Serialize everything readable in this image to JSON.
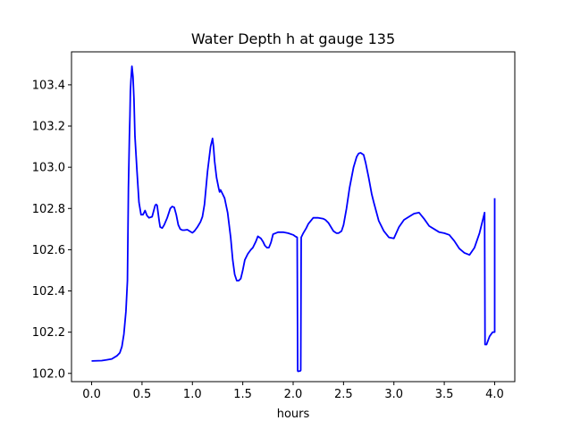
{
  "chart_data": {
    "type": "line",
    "title": "Water Depth h at gauge 135",
    "xlabel": "hours",
    "ylabel": "",
    "xlim": [
      -0.2,
      4.2
    ],
    "ylim": [
      101.96,
      103.56
    ],
    "x_ticks": [
      0.0,
      0.5,
      1.0,
      1.5,
      2.0,
      2.5,
      3.0,
      3.5,
      4.0
    ],
    "x_tick_labels": [
      "0.0",
      "0.5",
      "1.0",
      "1.5",
      "2.0",
      "2.5",
      "3.0",
      "3.5",
      "4.0"
    ],
    "y_ticks": [
      102.0,
      102.2,
      102.4,
      102.6,
      102.8,
      103.0,
      103.2,
      103.4
    ],
    "y_tick_labels": [
      "102.0",
      "102.2",
      "102.4",
      "102.6",
      "102.8",
      "103.0",
      "103.2",
      "103.4"
    ],
    "grid": false,
    "line_color": "#0000ff",
    "series": [
      {
        "x": [
          0.0,
          0.1,
          0.15,
          0.2,
          0.25,
          0.28,
          0.3,
          0.32,
          0.34,
          0.355,
          0.365,
          0.375,
          0.38,
          0.385,
          0.39,
          0.4,
          0.41,
          0.42,
          0.43,
          0.45,
          0.47,
          0.49,
          0.5,
          0.51,
          0.53,
          0.55,
          0.57,
          0.6,
          0.63,
          0.64,
          0.65,
          0.67,
          0.68,
          0.7,
          0.72,
          0.75,
          0.78,
          0.8,
          0.82,
          0.84,
          0.86,
          0.88,
          0.9,
          0.92,
          0.95,
          0.98,
          1.0,
          1.02,
          1.05,
          1.08,
          1.1,
          1.12,
          1.15,
          1.18,
          1.2,
          1.21,
          1.22,
          1.24,
          1.26,
          1.27,
          1.28,
          1.3,
          1.32,
          1.35,
          1.38,
          1.4,
          1.42,
          1.44,
          1.46,
          1.48,
          1.5,
          1.52,
          1.55,
          1.58,
          1.6,
          1.63,
          1.65,
          1.68,
          1.7,
          1.72,
          1.74,
          1.76,
          1.78,
          1.8,
          1.85,
          1.9,
          1.95,
          2.0,
          2.02,
          2.04,
          2.045,
          2.05,
          2.07,
          2.075,
          2.08,
          2.1,
          2.13,
          2.15,
          2.2,
          2.25,
          2.3,
          2.32,
          2.35,
          2.4,
          2.43,
          2.45,
          2.48,
          2.5,
          2.53,
          2.56,
          2.6,
          2.63,
          2.65,
          2.67,
          2.7,
          2.72,
          2.75,
          2.78,
          2.8,
          2.85,
          2.9,
          2.95,
          3.0,
          3.05,
          3.1,
          3.15,
          3.2,
          3.25,
          3.3,
          3.35,
          3.4,
          3.45,
          3.5,
          3.55,
          3.6,
          3.65,
          3.7,
          3.75,
          3.8,
          3.85,
          3.9,
          3.905,
          3.92,
          3.95,
          3.98,
          4.0,
          4.0
        ],
        "y": [
          102.06,
          102.062,
          102.066,
          102.07,
          102.085,
          102.1,
          102.13,
          102.19,
          102.3,
          102.45,
          102.9,
          103.15,
          103.25,
          103.37,
          103.42,
          103.49,
          103.44,
          103.33,
          103.15,
          102.98,
          102.83,
          102.77,
          102.77,
          102.77,
          102.79,
          102.765,
          102.755,
          102.76,
          102.815,
          102.82,
          102.815,
          102.74,
          102.71,
          102.705,
          102.72,
          102.755,
          102.8,
          102.81,
          102.805,
          102.77,
          102.72,
          102.7,
          102.695,
          102.695,
          102.697,
          102.688,
          102.682,
          102.69,
          102.71,
          102.735,
          102.76,
          102.82,
          102.98,
          103.1,
          103.14,
          103.1,
          103.03,
          102.95,
          102.9,
          102.88,
          102.89,
          102.87,
          102.85,
          102.78,
          102.66,
          102.55,
          102.48,
          102.45,
          102.45,
          102.46,
          102.5,
          102.55,
          102.58,
          102.6,
          102.61,
          102.64,
          102.665,
          102.655,
          102.64,
          102.62,
          102.61,
          102.61,
          102.635,
          102.675,
          102.685,
          102.685,
          102.68,
          102.672,
          102.665,
          102.66,
          102.012,
          102.01,
          102.012,
          102.015,
          102.66,
          102.68,
          102.705,
          102.725,
          102.755,
          102.755,
          102.75,
          102.745,
          102.73,
          102.69,
          102.68,
          102.68,
          102.69,
          102.72,
          102.8,
          102.9,
          103.0,
          103.05,
          103.067,
          103.07,
          103.06,
          103.02,
          102.95,
          102.87,
          102.83,
          102.74,
          102.69,
          102.66,
          102.655,
          102.71,
          102.745,
          102.76,
          102.775,
          102.78,
          102.75,
          102.715,
          102.7,
          102.685,
          102.68,
          102.672,
          102.642,
          102.605,
          102.585,
          102.575,
          102.61,
          102.68,
          102.78,
          102.14,
          102.14,
          102.18,
          102.2,
          102.2,
          102.85
        ]
      }
    ]
  }
}
